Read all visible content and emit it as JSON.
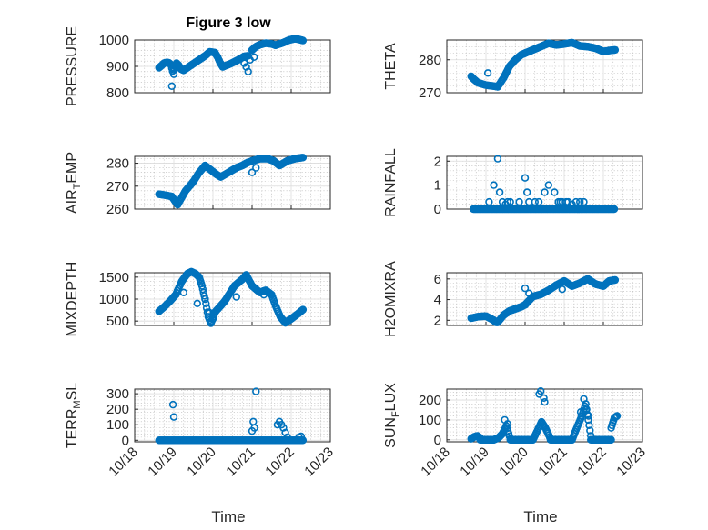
{
  "figure": {
    "title": "Figure 3 low",
    "marker_color": "#0072bd",
    "x_tick_labels": [
      "10/18",
      "10/19",
      "10/20",
      "10/21",
      "10/22",
      "10/23"
    ],
    "xlabel": "Time"
  },
  "chart_data": [
    {
      "type": "scatter",
      "ylabel": "PRESSURE",
      "ylim": [
        800,
        1000
      ],
      "yticks": [
        800,
        900,
        1000
      ],
      "xlim": [
        18.35,
        22.85
      ],
      "grid": "on (major + minor)",
      "segments": [
        {
          "x0": 18.62,
          "x1": 19.25,
          "x": [
            18.62,
            18.68,
            18.75,
            18.82,
            18.88,
            18.93,
            18.97,
            19.02,
            19.07,
            19.12,
            19.18,
            19.25
          ],
          "y": [
            895,
            902,
            912,
            915,
            913,
            905,
            882,
            900,
            912,
            905,
            890,
            885
          ]
        },
        {
          "x0": 19.25,
          "x1": 20.05,
          "x": [
            19.25,
            19.45,
            19.65,
            19.8,
            19.92,
            20.05
          ],
          "y": [
            885,
            905,
            925,
            940,
            955,
            952
          ]
        },
        {
          "x0": 20.05,
          "x1": 20.25,
          "x": [
            20.05,
            20.12,
            20.18,
            20.25
          ],
          "y": [
            952,
            935,
            915,
            898
          ]
        },
        {
          "x0": 20.25,
          "x1": 20.9,
          "x": [
            20.25,
            20.45,
            20.65,
            20.8,
            20.9
          ],
          "y": [
            898,
            910,
            925,
            938,
            940
          ]
        },
        {
          "x0": 21.0,
          "x1": 21.6,
          "x": [
            21.0,
            21.1,
            21.2,
            21.35,
            21.5,
            21.6
          ],
          "y": [
            962,
            975,
            982,
            988,
            985,
            980
          ]
        },
        {
          "x0": 21.6,
          "x1": 22.3,
          "x": [
            21.6,
            21.8,
            21.95,
            22.1,
            22.2,
            22.3
          ],
          "y": [
            980,
            990,
            1000,
            1005,
            1002,
            998
          ]
        }
      ],
      "extras": {
        "x": [
          18.95,
          19.0,
          20.8,
          20.85,
          20.9,
          20.95,
          21.05
        ],
        "y": [
          825,
          870,
          912,
          898,
          880,
          925,
          935
        ]
      }
    },
    {
      "type": "scatter",
      "ylabel": "THETA",
      "ylim": [
        270,
        286
      ],
      "yticks": [
        270,
        280
      ],
      "xlim": [
        18.35,
        22.85
      ],
      "grid": "on (major + minor)",
      "segments": [
        {
          "x0": 18.62,
          "x1": 18.8,
          "x": [
            18.62,
            18.7,
            18.8
          ],
          "y": [
            275,
            274,
            273
          ]
        },
        {
          "x0": 18.8,
          "x1": 19.3,
          "x": [
            18.8,
            19.0,
            19.2,
            19.3
          ],
          "y": [
            273,
            272.3,
            272,
            271.8
          ]
        },
        {
          "x0": 19.3,
          "x1": 20.0,
          "x": [
            19.3,
            19.45,
            19.6,
            19.75,
            19.9,
            20.0
          ],
          "y": [
            271.8,
            274.5,
            278,
            280,
            281.5,
            282
          ]
        },
        {
          "x0": 20.0,
          "x1": 20.8,
          "x": [
            20.0,
            20.2,
            20.4,
            20.6,
            20.8
          ],
          "y": [
            282,
            283,
            284,
            285,
            284.5
          ]
        },
        {
          "x0": 20.8,
          "x1": 21.6,
          "x": [
            20.8,
            21.0,
            21.2,
            21.4,
            21.6
          ],
          "y": [
            284.5,
            284.8,
            285.2,
            284.2,
            284
          ]
        },
        {
          "x0": 21.6,
          "x1": 22.3,
          "x": [
            21.6,
            21.8,
            22.0,
            22.15,
            22.3
          ],
          "y": [
            284,
            283.5,
            282.5,
            282.8,
            283
          ]
        }
      ],
      "extras": {
        "x": [
          19.05
        ],
        "y": [
          276
        ]
      }
    },
    {
      "type": "scatter",
      "ylabel": "AIR",
      "ylabel_sub": "T",
      "ylabel_tail": "EMP",
      "ylim": [
        260,
        283
      ],
      "yticks": [
        260,
        270,
        280
      ],
      "xlim": [
        18.35,
        22.85
      ],
      "grid": "on (major + minor)",
      "segments": [
        {
          "x0": 18.62,
          "x1": 19.1,
          "x": [
            18.62,
            18.8,
            18.95,
            19.05,
            19.1
          ],
          "y": [
            266.5,
            266,
            265.5,
            263,
            262
          ]
        },
        {
          "x0": 19.1,
          "x1": 19.8,
          "x": [
            19.1,
            19.3,
            19.5,
            19.65,
            19.8
          ],
          "y": [
            262,
            268,
            272,
            276,
            279
          ]
        },
        {
          "x0": 19.8,
          "x1": 20.2,
          "x": [
            19.8,
            19.95,
            20.1,
            20.2
          ],
          "y": [
            279,
            277,
            275,
            274
          ]
        },
        {
          "x0": 20.2,
          "x1": 20.85,
          "x": [
            20.2,
            20.4,
            20.6,
            20.75,
            20.85
          ],
          "y": [
            274,
            276,
            278,
            279,
            280
          ]
        },
        {
          "x0": 20.85,
          "x1": 21.55,
          "x": [
            20.85,
            21.0,
            21.2,
            21.4,
            21.55
          ],
          "y": [
            280,
            281,
            282,
            282,
            281
          ]
        },
        {
          "x0": 21.55,
          "x1": 22.3,
          "x": [
            21.55,
            21.7,
            21.9,
            22.1,
            22.3
          ],
          "y": [
            281,
            279,
            281,
            282,
            282.5
          ]
        }
      ],
      "extras": {
        "x": [
          21.0,
          21.1
        ],
        "y": [
          276,
          278
        ]
      }
    },
    {
      "type": "scatter",
      "ylabel": "RAINFALL",
      "ylim": [
        0,
        2.2
      ],
      "yticks": [
        0,
        1,
        2
      ],
      "xlim": [
        18.35,
        22.85
      ],
      "grid": "on (major + minor)",
      "segments": [
        {
          "x0": 18.68,
          "x1": 22.28,
          "x": [
            18.68,
            18.9,
            19.2,
            19.5,
            19.8,
            20.1,
            20.4,
            20.7,
            21.0,
            21.3,
            21.6,
            21.9,
            22.28
          ],
          "y": [
            0,
            0,
            0,
            0,
            0,
            0,
            0,
            0,
            0,
            0,
            0,
            0,
            0
          ]
        }
      ],
      "extras": {
        "x": [
          19.08,
          19.2,
          19.3,
          19.35,
          19.42,
          19.5,
          19.55,
          19.62,
          19.85,
          20.0,
          20.05,
          20.1,
          20.25,
          20.35,
          20.5,
          20.6,
          20.75,
          20.85,
          20.9,
          20.95,
          21.05,
          21.1,
          21.2,
          21.3,
          21.4,
          21.5
        ],
        "y": [
          0.3,
          1.0,
          2.1,
          0.7,
          0.3,
          0.2,
          0.3,
          0.3,
          0.3,
          1.3,
          0.7,
          0.3,
          0.3,
          0.3,
          0.7,
          1.0,
          0.7,
          0.3,
          0.3,
          0.3,
          0.3,
          0.3,
          0.2,
          0.3,
          0.3,
          0.3
        ]
      }
    },
    {
      "type": "scatter",
      "ylabel": "MIXDEPTH",
      "ylim": [
        400,
        1600
      ],
      "yticks": [
        500,
        1000,
        1500
      ],
      "xlim": [
        18.35,
        22.85
      ],
      "grid": "on (major + minor)",
      "segments": [
        {
          "x0": 18.62,
          "x1": 19.05,
          "x": [
            18.62,
            18.75,
            18.9,
            19.05
          ],
          "y": [
            720,
            820,
            950,
            1100
          ]
        },
        {
          "x0": 19.05,
          "x1": 19.45,
          "x": [
            19.05,
            19.2,
            19.35,
            19.45
          ],
          "y": [
            1100,
            1400,
            1580,
            1620
          ]
        },
        {
          "x0": 19.45,
          "x1": 19.8,
          "x": [
            19.45,
            19.55,
            19.65,
            19.72,
            19.8
          ],
          "y": [
            1620,
            1580,
            1500,
            1300,
            1000
          ]
        },
        {
          "x0": 19.8,
          "x1": 20.05,
          "x": [
            19.8,
            19.88,
            19.95,
            20.05
          ],
          "y": [
            1000,
            600,
            450,
            700
          ]
        },
        {
          "x0": 20.05,
          "x1": 20.85,
          "x": [
            20.05,
            20.3,
            20.55,
            20.75,
            20.85
          ],
          "y": [
            700,
            950,
            1300,
            1450,
            1550
          ]
        },
        {
          "x0": 20.85,
          "x1": 21.5,
          "x": [
            20.85,
            21.0,
            21.2,
            21.35,
            21.5
          ],
          "y": [
            1550,
            1300,
            1150,
            1200,
            1100
          ]
        },
        {
          "x0": 21.5,
          "x1": 21.85,
          "x": [
            21.5,
            21.6,
            21.72,
            21.85
          ],
          "y": [
            1100,
            850,
            600,
            460
          ]
        },
        {
          "x0": 21.85,
          "x1": 22.3,
          "x": [
            21.85,
            22.0,
            22.15,
            22.3
          ],
          "y": [
            460,
            550,
            650,
            760
          ]
        }
      ],
      "extras": {
        "x": [
          19.25,
          19.6,
          19.9,
          20.0,
          20.6,
          21.3
        ],
        "y": [
          1150,
          900,
          700,
          550,
          1050,
          1100
        ]
      }
    },
    {
      "type": "scatter",
      "ylabel": "H2OMIXRA",
      "ylim": [
        1.5,
        6.6
      ],
      "yticks": [
        2,
        4,
        6
      ],
      "xlim": [
        18.35,
        22.85
      ],
      "grid": "on (major + minor)",
      "segments": [
        {
          "x0": 18.62,
          "x1": 19.2,
          "x": [
            18.62,
            18.8,
            19.0,
            19.1,
            19.2
          ],
          "y": [
            2.2,
            2.35,
            2.4,
            2.2,
            2.0
          ]
        },
        {
          "x0": 19.2,
          "x1": 19.3,
          "x": [
            19.2,
            19.25,
            19.3
          ],
          "y": [
            2.0,
            1.8,
            1.8
          ]
        },
        {
          "x0": 19.3,
          "x1": 20.0,
          "x": [
            19.3,
            19.45,
            19.6,
            19.75,
            19.9,
            20.0
          ],
          "y": [
            1.8,
            2.5,
            2.9,
            3.1,
            3.3,
            3.5
          ]
        },
        {
          "x0": 20.0,
          "x1": 20.8,
          "x": [
            20.0,
            20.2,
            20.4,
            20.6,
            20.8
          ],
          "y": [
            3.5,
            4.3,
            4.5,
            4.9,
            5.4
          ]
        },
        {
          "x0": 20.8,
          "x1": 21.6,
          "x": [
            20.8,
            21.0,
            21.2,
            21.4,
            21.6
          ],
          "y": [
            5.4,
            5.8,
            5.3,
            5.6,
            6.0
          ]
        },
        {
          "x0": 21.6,
          "x1": 22.3,
          "x": [
            21.6,
            21.8,
            22.0,
            22.15,
            22.3
          ],
          "y": [
            6.0,
            5.5,
            5.3,
            5.8,
            5.9
          ]
        }
      ],
      "extras": {
        "x": [
          20.0,
          20.1,
          20.95
        ],
        "y": [
          5.1,
          4.6,
          5.0
        ]
      }
    },
    {
      "type": "scatter",
      "ylabel": "TERR",
      "ylabel_sub": "M",
      "ylabel_tail": "SL",
      "ylim": [
        -10,
        330
      ],
      "yticks": [
        0,
        100,
        200,
        300
      ],
      "xlim": [
        18.35,
        22.85
      ],
      "grid": "on (major + minor)",
      "segments": [
        {
          "x0": 18.62,
          "x1": 22.3,
          "x": [
            18.62,
            19.0,
            19.5,
            20.0,
            20.5,
            21.0,
            21.5,
            22.0,
            22.3
          ],
          "y": [
            0,
            0,
            0,
            0,
            0,
            0,
            0,
            0,
            0
          ]
        }
      ],
      "extras": {
        "x": [
          18.98,
          19.0,
          21.0,
          21.03,
          21.06,
          21.1,
          21.65,
          21.7,
          21.75,
          21.8,
          21.85,
          21.9,
          22.2,
          22.25
        ],
        "y": [
          230,
          150,
          60,
          120,
          80,
          315,
          100,
          120,
          100,
          80,
          50,
          20,
          20,
          25
        ]
      }
    },
    {
      "type": "scatter",
      "ylabel": "SUN",
      "ylabel_sub": "F",
      "ylabel_tail": "LUX",
      "ylim": [
        -10,
        255
      ],
      "yticks": [
        0,
        100,
        200
      ],
      "xlim": [
        18.35,
        22.85
      ],
      "grid": "on (major + minor)",
      "segments": [
        {
          "x0": 18.62,
          "x1": 18.85,
          "x": [
            18.62,
            18.7,
            18.78,
            18.85
          ],
          "y": [
            5,
            15,
            20,
            10
          ]
        },
        {
          "x0": 18.85,
          "x1": 19.2,
          "x": [
            18.85,
            19.0,
            19.2
          ],
          "y": [
            0,
            0,
            0
          ]
        },
        {
          "x0": 19.2,
          "x1": 19.62,
          "x": [
            19.2,
            19.32,
            19.42,
            19.52,
            19.62
          ],
          "y": [
            0,
            10,
            30,
            70,
            5
          ]
        },
        {
          "x0": 19.62,
          "x1": 20.2,
          "x": [
            19.62,
            19.9,
            20.2
          ],
          "y": [
            0,
            0,
            0
          ]
        },
        {
          "x0": 20.2,
          "x1": 20.65,
          "x": [
            20.2,
            20.3,
            20.42,
            20.52,
            20.65
          ],
          "y": [
            0,
            40,
            90,
            60,
            5
          ]
        },
        {
          "x0": 20.65,
          "x1": 21.2,
          "x": [
            20.65,
            20.95,
            21.2
          ],
          "y": [
            0,
            0,
            0
          ]
        },
        {
          "x0": 21.2,
          "x1": 21.68,
          "x": [
            21.2,
            21.32,
            21.45,
            21.55,
            21.68
          ],
          "y": [
            0,
            60,
            120,
            180,
            20
          ]
        },
        {
          "x0": 21.68,
          "x1": 22.2,
          "x": [
            21.68,
            21.95,
            22.2
          ],
          "y": [
            0,
            0,
            0
          ]
        },
        {
          "x0": 22.2,
          "x1": 22.35,
          "x": [
            22.2,
            22.28,
            22.35
          ],
          "y": [
            60,
            110,
            120
          ]
        }
      ],
      "extras": {
        "x": [
          19.48,
          19.55,
          20.36,
          20.4,
          20.48,
          20.5,
          21.42,
          21.5,
          21.55,
          21.62
        ],
        "y": [
          100,
          80,
          230,
          245,
          210,
          190,
          140,
          205,
          150,
          120
        ]
      }
    }
  ]
}
